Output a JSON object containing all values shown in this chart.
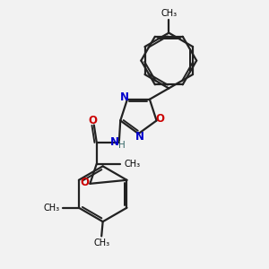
{
  "background_color": "#f2f2f2",
  "atom_colors": {
    "N": "#0000cc",
    "O": "#cc0000",
    "C": "#000000",
    "H": "#336666"
  },
  "bond_color": "#222222",
  "line_width": 1.6,
  "fig_width": 3.0,
  "fig_height": 3.0,
  "dpi": 100,
  "xlim": [
    0,
    10
  ],
  "ylim": [
    0,
    10
  ]
}
